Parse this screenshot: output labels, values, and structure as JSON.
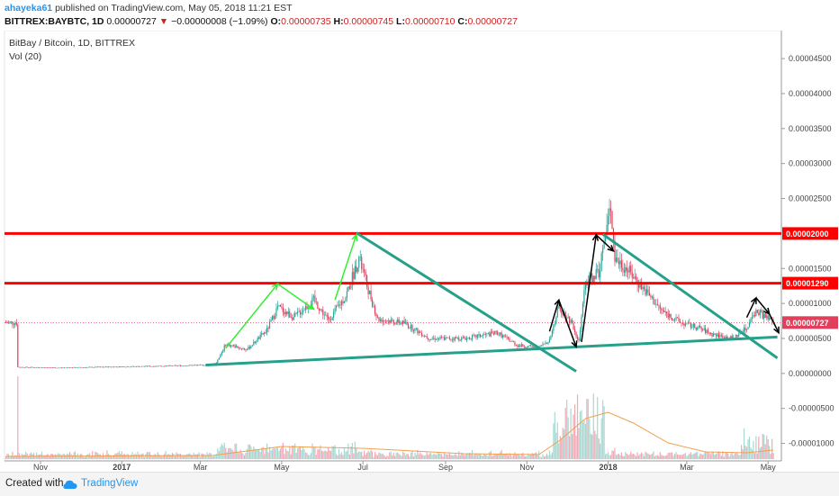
{
  "header": {
    "author": "ahayeka61",
    "published": "published on TradingView.com, May 05, 2018 11:21 EST",
    "symbol": "BITTREX:BAYBTC, 1D",
    "last": "0.00000727",
    "arrow": "▼",
    "change": "−0.00000008 (−1.09%)",
    "o_label": "O:",
    "o_value": "0.00000735",
    "h_label": "H:",
    "h_value": "0.00000745",
    "l_label": "L:",
    "l_value": "0.00000710",
    "c_label": "C:",
    "c_value": "0.00000727"
  },
  "legend": {
    "title": "BitBay / Bitcoin, 1D, BITTREX",
    "volume": "Vol (20)"
  },
  "footer": {
    "created": "Created with",
    "brand": "TradingView"
  },
  "colors": {
    "up": "#26a69a",
    "down": "#e0405c",
    "volume_up": "#a8d8d2",
    "volume_down": "#f2a8b5",
    "resistance": "#ff0000",
    "trendline": "#26a08a",
    "arrow_green": "#33ee33",
    "arrow_black": "#000000",
    "volume_ma": "#f0a050",
    "price_marker": "#e0405c"
  },
  "chart_data": {
    "type": "candlestick",
    "title": "BitBay / Bitcoin, 1D, BITTREX",
    "x_labels": [
      "Nov",
      "2017",
      "Mar",
      "May",
      "Jul",
      "Sep",
      "Nov",
      "2018",
      "Mar",
      "May"
    ],
    "y_ticks": [
      "0.00004500",
      "0.00004000",
      "0.00003500",
      "0.00003000",
      "0.00002500",
      "0.00001500",
      "0.00001000",
      "0.00000500",
      "0.00000000",
      "-0.00000500",
      "-0.00001000"
    ],
    "y_range": [
      -1.25e-05,
      4.9e-05
    ],
    "price_marker_levels": [
      {
        "label": "0.00002000",
        "value": 2e-05
      },
      {
        "label": "0.00001290",
        "value": 1.29e-05
      },
      {
        "label": "0.00000727",
        "value": 7.27e-06
      }
    ],
    "resistance_levels": [
      2e-05,
      1.29e-05
    ],
    "close_series": [
      [
        "2016-10-15",
        9e-07
      ],
      [
        "2016-11-15",
        8e-07
      ],
      [
        "2016-12-15",
        9e-07
      ],
      [
        "2017-01-15",
        1e-06
      ],
      [
        "2017-02-10",
        1.1e-06
      ],
      [
        "2017-03-05",
        1.2e-06
      ],
      [
        "2017-03-13",
        1.5e-06
      ],
      [
        "2017-03-20",
        4.2e-06
      ],
      [
        "2017-04-05",
        3.4e-06
      ],
      [
        "2017-04-20",
        6.2e-06
      ],
      [
        "2017-04-28",
        9.5e-06
      ],
      [
        "2017-05-10",
        8e-06
      ],
      [
        "2017-05-25",
        1.05e-05
      ],
      [
        "2017-06-05",
        7.6e-06
      ],
      [
        "2017-06-18",
        1.1e-05
      ],
      [
        "2017-06-28",
        1.65e-05
      ],
      [
        "2017-07-05",
        1.2e-05
      ],
      [
        "2017-07-12",
        7.8e-06
      ],
      [
        "2017-08-01",
        7.2e-06
      ],
      [
        "2017-08-20",
        5e-06
      ],
      [
        "2017-09-15",
        5e-06
      ],
      [
        "2017-10-10",
        5.8e-06
      ],
      [
        "2017-10-25",
        4e-06
      ],
      [
        "2017-11-10",
        3.7e-06
      ],
      [
        "2017-11-18",
        4.8e-06
      ],
      [
        "2017-11-25",
        9.5e-06
      ],
      [
        "2017-12-05",
        7.2e-06
      ],
      [
        "2017-12-10",
        4.5e-06
      ],
      [
        "2017-12-15",
        1.3e-05
      ],
      [
        "2017-12-25",
        1.45e-05
      ],
      [
        "2018-01-03",
        2.4e-05
      ],
      [
        "2018-01-06",
        1.65e-05
      ],
      [
        "2018-01-15",
        1.5e-05
      ],
      [
        "2018-01-28",
        1.2e-05
      ],
      [
        "2018-02-10",
        9e-06
      ],
      [
        "2018-02-25",
        7.2e-06
      ],
      [
        "2018-03-10",
        6.5e-06
      ],
      [
        "2018-03-20",
        5.6e-06
      ],
      [
        "2018-04-05",
        5e-06
      ],
      [
        "2018-04-15",
        6.5e-06
      ],
      [
        "2018-04-22",
        9e-06
      ],
      [
        "2018-04-28",
        8.2e-06
      ],
      [
        "2018-05-05",
        7.27e-06
      ]
    ]
  }
}
